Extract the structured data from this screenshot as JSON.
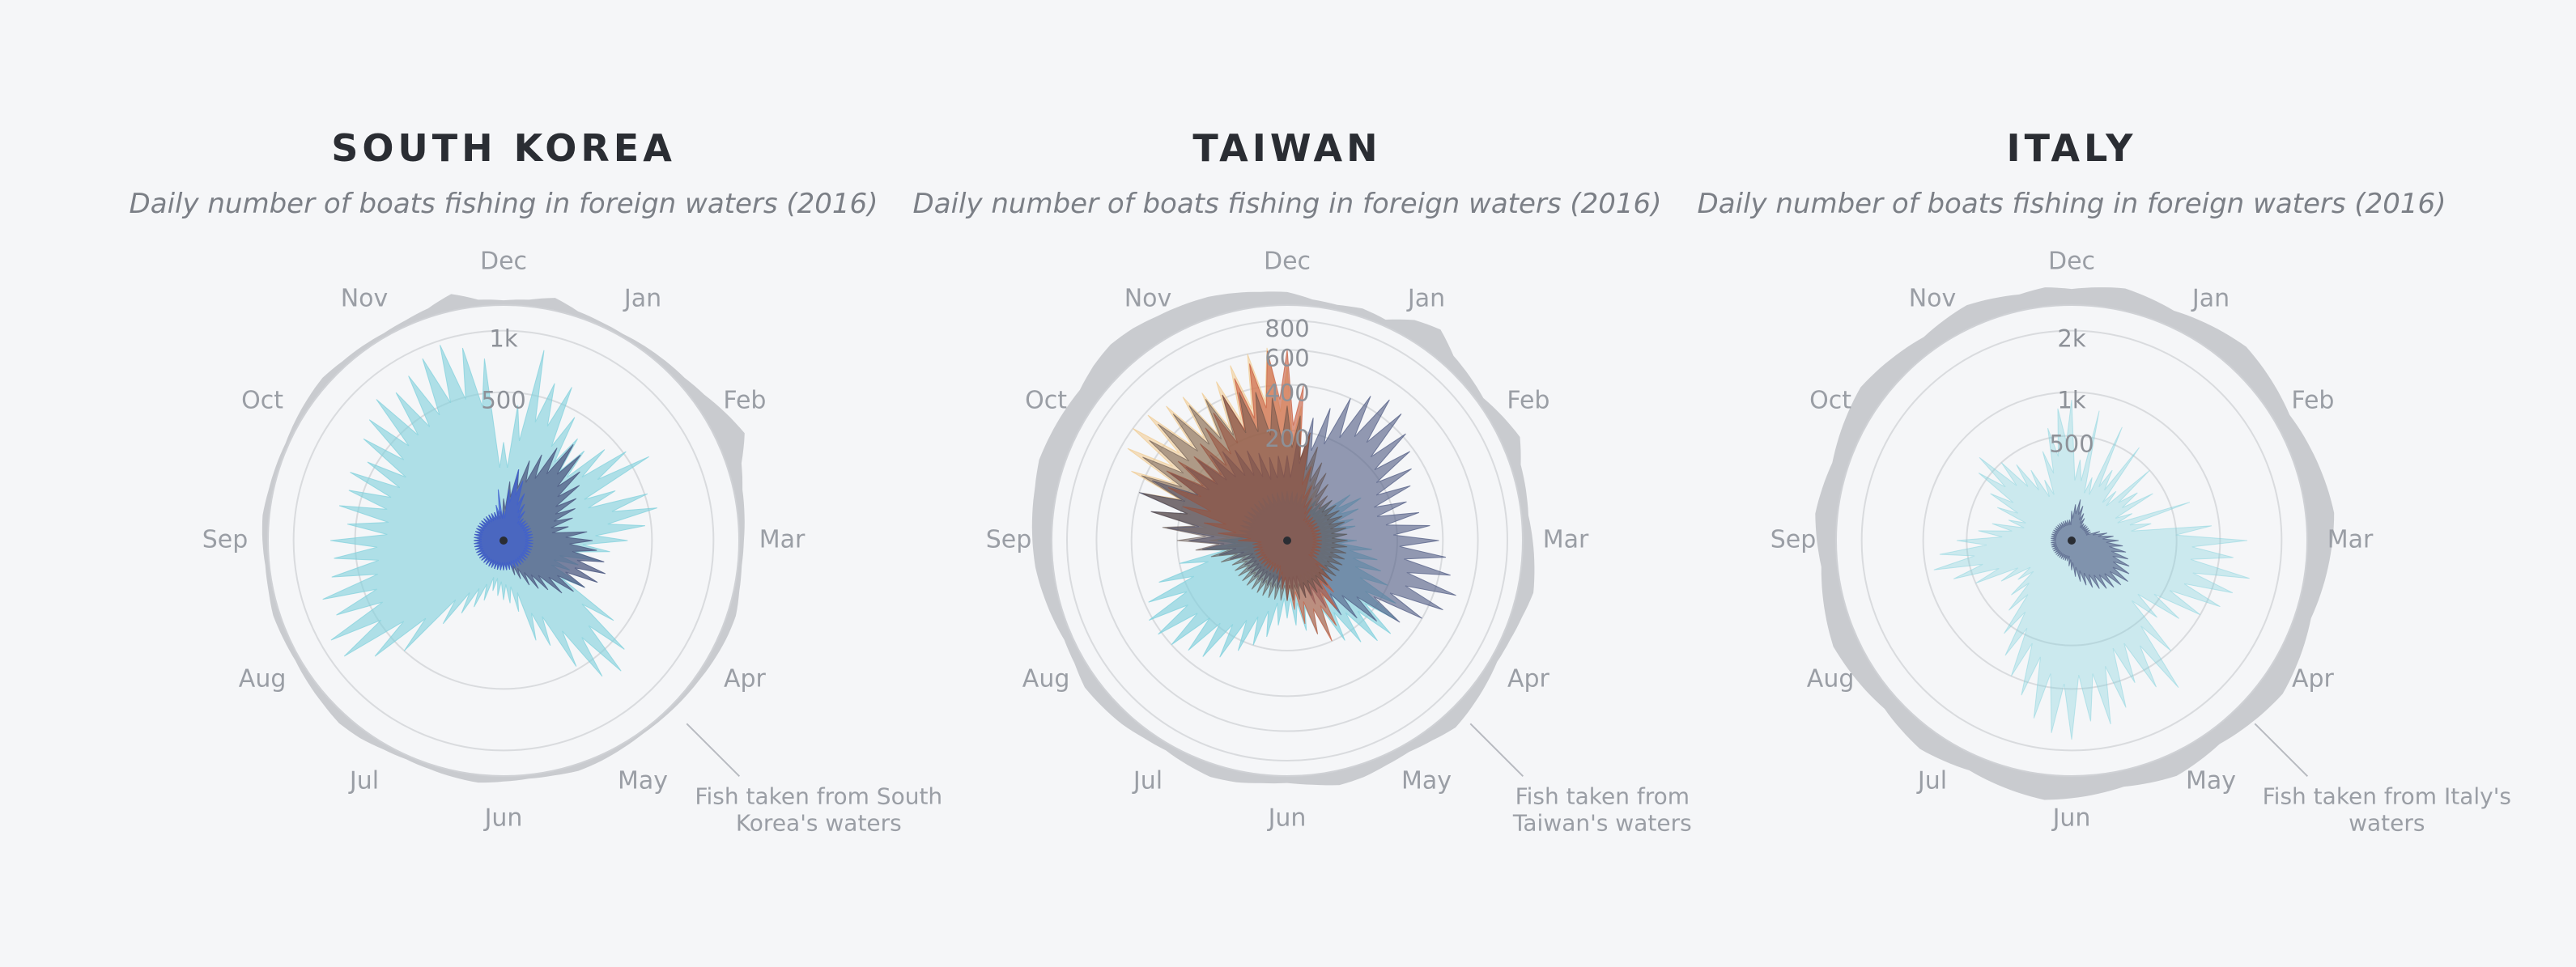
{
  "colors": {
    "background": "#f5f6f8",
    "title": "#2a2d33",
    "subtitle": "#7b7f86",
    "label": "#9a9ea5",
    "ring": "#cfd1d5",
    "domestic": "#c9cbcf",
    "teal": "#7fd0dc",
    "navy": "#4e5a82",
    "blue": "#3f5fd0",
    "peach": "#f0c98c",
    "rust": "#c85a3a",
    "dark": "#5b4a44"
  },
  "chart_data": [
    {
      "type": "radial-area",
      "title": "SOUTH KOREA",
      "subtitle": "Daily number of boats fishing in foreign waters (2016)",
      "months": [
        "Dec",
        "Jan",
        "Feb",
        "Mar",
        "Apr",
        "May",
        "Jun",
        "Jul",
        "Aug",
        "Sep",
        "Oct",
        "Nov"
      ],
      "rings": [
        {
          "value": 500,
          "label": "500"
        },
        {
          "value": 1000,
          "label": "1k"
        }
      ],
      "rmax": 1100,
      "annotation": "Fish taken from South Korea's waters",
      "annotation_lines": [
        "Fish taken from South",
        "Korea's waters"
      ],
      "series": [
        {
          "color": "teal",
          "opacity": 0.6,
          "values": [
            220,
            420,
            860,
            620,
            640,
            460,
            360,
            330,
            420,
            520,
            640,
            340,
            520,
            560,
            460,
            350,
            260,
            220,
            140,
            120,
            200,
            420,
            600,
            700,
            640,
            480,
            300,
            250,
            120,
            90,
            80,
            70,
            60,
            90,
            120,
            160,
            240,
            500,
            680,
            880,
            900,
            760,
            820,
            700,
            660,
            680,
            560,
            640,
            600,
            640,
            560,
            680,
            740,
            820,
            760,
            820,
            900,
            960,
            880,
            760
          ]
        },
        {
          "color": "navy",
          "opacity": 0.75,
          "values": [
            40,
            80,
            120,
            160,
            200,
            260,
            320,
            300,
            240,
            200,
            160,
            140,
            120,
            100,
            160,
            180,
            200,
            240,
            260,
            240,
            200,
            170,
            140,
            100,
            80,
            60,
            40,
            30,
            20,
            20,
            20,
            20,
            20,
            20,
            20,
            20,
            20,
            20,
            20,
            20,
            20,
            20,
            20,
            20,
            20,
            20,
            20,
            20,
            20,
            20,
            20,
            20,
            20,
            20,
            20,
            20,
            20,
            20,
            20,
            20
          ]
        },
        {
          "color": "blue",
          "opacity": 0.7,
          "values": [
            20,
            60,
            120,
            90,
            60,
            40,
            30,
            20,
            20,
            20,
            20,
            20,
            20,
            20,
            20,
            20,
            20,
            20,
            20,
            20,
            20,
            20,
            20,
            20,
            20,
            20,
            20,
            20,
            20,
            20,
            20,
            20,
            20,
            20,
            20,
            20,
            20,
            20,
            20,
            20,
            20,
            20,
            20,
            20,
            20,
            20,
            20,
            20,
            20,
            20,
            20,
            20,
            20,
            20,
            20,
            20,
            20,
            20,
            30,
            60
          ]
        }
      ],
      "domestic": [
        10,
        15,
        30,
        12,
        8,
        6,
        10,
        14,
        18,
        30,
        50,
        70,
        35,
        20,
        15,
        10,
        8,
        12,
        20,
        18,
        14,
        10,
        8,
        6,
        5,
        8,
        12,
        15,
        10,
        8,
        12,
        18,
        14,
        10,
        8,
        12,
        20,
        24,
        18,
        14,
        10,
        12,
        15,
        10,
        8,
        12,
        15,
        10,
        8,
        6,
        10,
        14,
        18,
        12,
        10,
        8,
        12,
        20,
        40,
        15
      ]
    },
    {
      "type": "radial-area",
      "title": "TAIWAN",
      "subtitle": "Daily number of boats fishing in foreign waters (2016)",
      "months": [
        "Dec",
        "Jan",
        "Feb",
        "Mar",
        "Apr",
        "May",
        "Jun",
        "Jul",
        "Aug",
        "Sep",
        "Oct",
        "Nov"
      ],
      "rings": [
        {
          "value": 200,
          "label": "200"
        },
        {
          "value": 400,
          "label": "400"
        },
        {
          "value": 600,
          "label": "600"
        },
        {
          "value": 800,
          "label": "800"
        }
      ],
      "rmax": 800,
      "annotation": "Fish taken from Taiwan's waters",
      "annotation_lines": [
        "Fish taken from",
        "Taiwan's waters"
      ],
      "series": [
        {
          "color": "peach",
          "opacity": 0.55,
          "values": [
            500,
            300,
            200,
            120,
            80,
            60,
            50,
            40,
            40,
            40,
            40,
            40,
            40,
            40,
            40,
            40,
            40,
            40,
            40,
            40,
            40,
            40,
            40,
            40,
            40,
            40,
            40,
            40,
            40,
            40,
            40,
            40,
            40,
            40,
            40,
            40,
            40,
            40,
            40,
            40,
            40,
            40,
            40,
            40,
            60,
            100,
            200,
            300,
            400,
            480,
            560,
            600,
            580,
            540,
            520,
            480,
            500,
            560,
            600,
            620
          ]
        },
        {
          "color": "teal",
          "opacity": 0.65,
          "values": [
            40,
            40,
            40,
            40,
            40,
            40,
            40,
            40,
            60,
            100,
            120,
            100,
            80,
            80,
            60,
            80,
            120,
            140,
            160,
            200,
            260,
            300,
            320,
            300,
            260,
            220,
            180,
            160,
            140,
            120,
            100,
            120,
            160,
            200,
            240,
            300,
            340,
            360,
            400,
            420,
            420,
            380,
            300,
            200,
            120,
            80,
            60,
            40,
            40,
            40,
            40,
            40,
            40,
            40,
            40,
            40,
            40,
            40,
            40,
            40
          ]
        },
        {
          "color": "navy",
          "opacity": 0.6,
          "values": [
            120,
            180,
            260,
            320,
            400,
            460,
            500,
            480,
            420,
            380,
            340,
            300,
            260,
            300,
            340,
            380,
            420,
            460,
            520,
            480,
            400,
            320,
            240,
            180,
            140,
            100,
            80,
            60,
            40,
            40,
            40,
            40,
            40,
            40,
            40,
            40,
            40,
            40,
            40,
            40,
            40,
            40,
            60,
            80,
            120,
            160,
            240,
            320,
            400,
            360,
            300,
            260,
            240,
            220,
            200,
            180,
            160,
            140,
            120,
            120
          ]
        },
        {
          "color": "rust",
          "opacity": 0.6,
          "values": [
            600,
            400,
            200,
            100,
            60,
            40,
            30,
            20,
            20,
            20,
            20,
            20,
            20,
            20,
            20,
            20,
            20,
            20,
            20,
            20,
            20,
            40,
            60,
            80,
            120,
            160,
            200,
            160,
            120,
            80,
            60,
            40,
            30,
            20,
            20,
            20,
            20,
            20,
            20,
            20,
            20,
            20,
            20,
            20,
            20,
            40,
            80,
            120,
            200,
            280,
            320,
            300,
            260,
            280,
            320,
            360,
            420,
            480,
            540,
            600
          ]
        },
        {
          "color": "dark",
          "opacity": 0.45,
          "values": [
            300,
            260,
            200,
            160,
            120,
            100,
            80,
            60,
            60,
            60,
            60,
            60,
            60,
            60,
            60,
            60,
            60,
            60,
            60,
            60,
            60,
            60,
            60,
            60,
            60,
            60,
            60,
            60,
            60,
            60,
            60,
            60,
            60,
            60,
            60,
            60,
            60,
            60,
            60,
            60,
            60,
            60,
            80,
            100,
            140,
            200,
            260,
            320,
            380,
            420,
            460,
            480,
            500,
            480,
            460,
            440,
            420,
            400,
            380,
            340
          ]
        }
      ],
      "domestic": [
        40,
        20,
        15,
        25,
        18,
        60,
        80,
        40,
        30,
        20,
        40,
        60,
        30,
        25,
        20,
        30,
        40,
        50,
        35,
        25,
        20,
        30,
        40,
        50,
        35,
        25,
        30,
        40,
        45,
        30,
        20,
        25,
        35,
        40,
        30,
        20,
        25,
        35,
        40,
        45,
        30,
        25,
        35,
        45,
        55,
        60,
        65,
        70,
        80,
        75,
        70,
        65,
        80,
        90,
        85,
        75,
        70,
        65,
        55,
        45
      ]
    },
    {
      "type": "radial-area",
      "title": "ITALY",
      "subtitle": "Daily number of boats fishing in foreign waters (2016)",
      "months": [
        "Dec",
        "Jan",
        "Feb",
        "Mar",
        "Apr",
        "May",
        "Jun",
        "Jul",
        "Aug",
        "Sep",
        "Oct",
        "Nov"
      ],
      "rings": [
        {
          "value": 500,
          "label": "500"
        },
        {
          "value": 1000,
          "label": "1k"
        },
        {
          "value": 2000,
          "label": "2k"
        }
      ],
      "rmax": 2200,
      "annotation": "Fish taken from Italy's waters",
      "annotation_lines": [
        "Fish taken from Italy's",
        "waters"
      ],
      "series": [
        {
          "color": "teal",
          "opacity": 0.35,
          "values": [
            900,
            300,
            800,
            200,
            700,
            300,
            600,
            200,
            500,
            300,
            400,
            200,
            700,
            300,
            900,
            1400,
            1200,
            1500,
            1300,
            1200,
            1000,
            800,
            600,
            1000,
            1500,
            1300,
            1100,
            1400,
            1600,
            1500,
            1800,
            1700,
            1500,
            1200,
            1000,
            800,
            600,
            400,
            300,
            200,
            300,
            500,
            700,
            900,
            800,
            600,
            400,
            300,
            200,
            300,
            400,
            600,
            700,
            500,
            400,
            300,
            200,
            400,
            600,
            800
          ]
        },
        {
          "color": "navy",
          "opacity": 0.6,
          "values": [
            40,
            60,
            80,
            60,
            40,
            30,
            20,
            20,
            20,
            20,
            20,
            20,
            40,
            60,
            80,
            100,
            120,
            140,
            160,
            180,
            200,
            220,
            200,
            180,
            160,
            140,
            120,
            100,
            80,
            60,
            40,
            30,
            20,
            20,
            20,
            20,
            20,
            20,
            20,
            20,
            20,
            20,
            20,
            20,
            20,
            20,
            20,
            20,
            20,
            20,
            20,
            20,
            20,
            20,
            20,
            20,
            20,
            20,
            20,
            20
          ]
        }
      ],
      "domestic": [
        10,
        12,
        14,
        12,
        10,
        12,
        14,
        16,
        14,
        12,
        10,
        12,
        14,
        16,
        18,
        16,
        14,
        12,
        10,
        12,
        14,
        16,
        14,
        12,
        10,
        12,
        14,
        12,
        10,
        12,
        14,
        16,
        14,
        12,
        10,
        12,
        14,
        12,
        10,
        12,
        14,
        16,
        14,
        12,
        10,
        12,
        14,
        12,
        10,
        12,
        14,
        16,
        14,
        12,
        10,
        12,
        14,
        12,
        10,
        12
      ]
    }
  ]
}
